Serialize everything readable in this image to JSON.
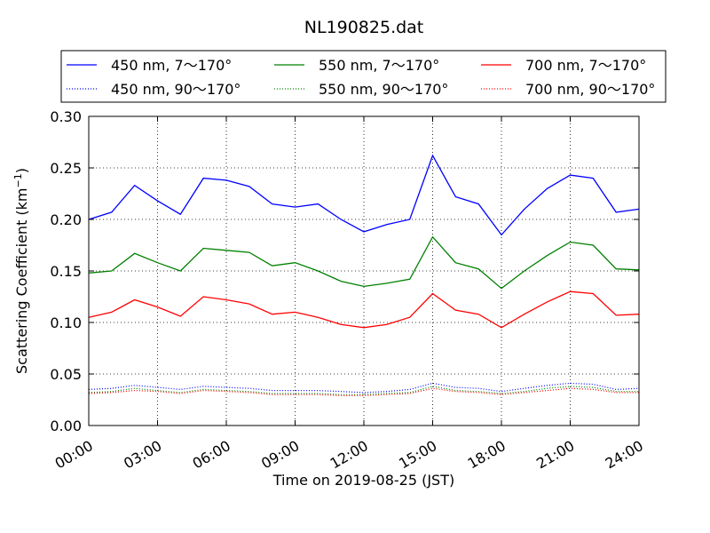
{
  "chart_data": {
    "type": "line",
    "title": "NL190825.dat",
    "xlabel": "Time on 2019-08-25 (JST)",
    "ylabel": "Scattering Coefficient (km",
    "ylabel_sup": "−1",
    "ylabel_close": ")",
    "xlim": [
      "00:00",
      "24:00"
    ],
    "ylim": [
      0.0,
      0.3
    ],
    "grid": true,
    "legend_position": "top",
    "x_ticks": [
      "00:00",
      "03:00",
      "06:00",
      "09:00",
      "12:00",
      "15:00",
      "18:00",
      "21:00",
      "24:00"
    ],
    "y_ticks": [
      "0.00",
      "0.05",
      "0.10",
      "0.15",
      "0.20",
      "0.25",
      "0.30"
    ],
    "x": [
      "00:00",
      "01:00",
      "02:00",
      "03:00",
      "04:00",
      "05:00",
      "06:00",
      "07:00",
      "08:00",
      "09:00",
      "10:00",
      "11:00",
      "12:00",
      "13:00",
      "14:00",
      "15:00",
      "16:00",
      "17:00",
      "18:00",
      "19:00",
      "20:00",
      "21:00",
      "22:00",
      "23:00",
      "24:00"
    ],
    "series": [
      {
        "name": "450 nm, 7～170°",
        "color": "#0000ff",
        "style": "solid",
        "values": [
          0.2,
          0.207,
          0.233,
          0.218,
          0.205,
          0.24,
          0.238,
          0.232,
          0.215,
          0.212,
          0.215,
          0.2,
          0.188,
          0.195,
          0.2,
          0.262,
          0.222,
          0.215,
          0.185,
          0.21,
          0.23,
          0.243,
          0.24,
          0.207,
          0.21
        ]
      },
      {
        "name": "450 nm, 90～170°",
        "color": "#0000ff",
        "style": "dotted",
        "values": [
          0.035,
          0.036,
          0.039,
          0.037,
          0.035,
          0.038,
          0.037,
          0.036,
          0.034,
          0.034,
          0.034,
          0.033,
          0.032,
          0.033,
          0.035,
          0.041,
          0.037,
          0.036,
          0.033,
          0.036,
          0.039,
          0.041,
          0.04,
          0.035,
          0.036
        ]
      },
      {
        "name": "550 nm, 7～170°",
        "color": "#008000",
        "style": "solid",
        "values": [
          0.148,
          0.15,
          0.167,
          0.158,
          0.15,
          0.172,
          0.17,
          0.168,
          0.155,
          0.158,
          0.15,
          0.14,
          0.135,
          0.138,
          0.142,
          0.183,
          0.158,
          0.152,
          0.133,
          0.15,
          0.165,
          0.178,
          0.175,
          0.152,
          0.151
        ]
      },
      {
        "name": "550 nm, 90～170°",
        "color": "#008000",
        "style": "dotted",
        "values": [
          0.032,
          0.033,
          0.036,
          0.034,
          0.032,
          0.035,
          0.034,
          0.033,
          0.031,
          0.031,
          0.031,
          0.03,
          0.03,
          0.031,
          0.032,
          0.038,
          0.034,
          0.033,
          0.031,
          0.033,
          0.036,
          0.038,
          0.037,
          0.033,
          0.033
        ]
      },
      {
        "name": "700 nm, 7～170°",
        "color": "#ff0000",
        "style": "solid",
        "values": [
          0.105,
          0.11,
          0.122,
          0.115,
          0.106,
          0.125,
          0.122,
          0.118,
          0.108,
          0.11,
          0.105,
          0.098,
          0.095,
          0.098,
          0.105,
          0.128,
          0.112,
          0.108,
          0.095,
          0.108,
          0.12,
          0.13,
          0.128,
          0.107,
          0.108
        ]
      },
      {
        "name": "700 nm, 90～170°",
        "color": "#ff0000",
        "style": "dotted",
        "values": [
          0.031,
          0.032,
          0.034,
          0.033,
          0.031,
          0.034,
          0.033,
          0.032,
          0.03,
          0.03,
          0.03,
          0.029,
          0.029,
          0.03,
          0.031,
          0.036,
          0.033,
          0.032,
          0.03,
          0.032,
          0.034,
          0.036,
          0.035,
          0.032,
          0.032
        ]
      }
    ]
  }
}
